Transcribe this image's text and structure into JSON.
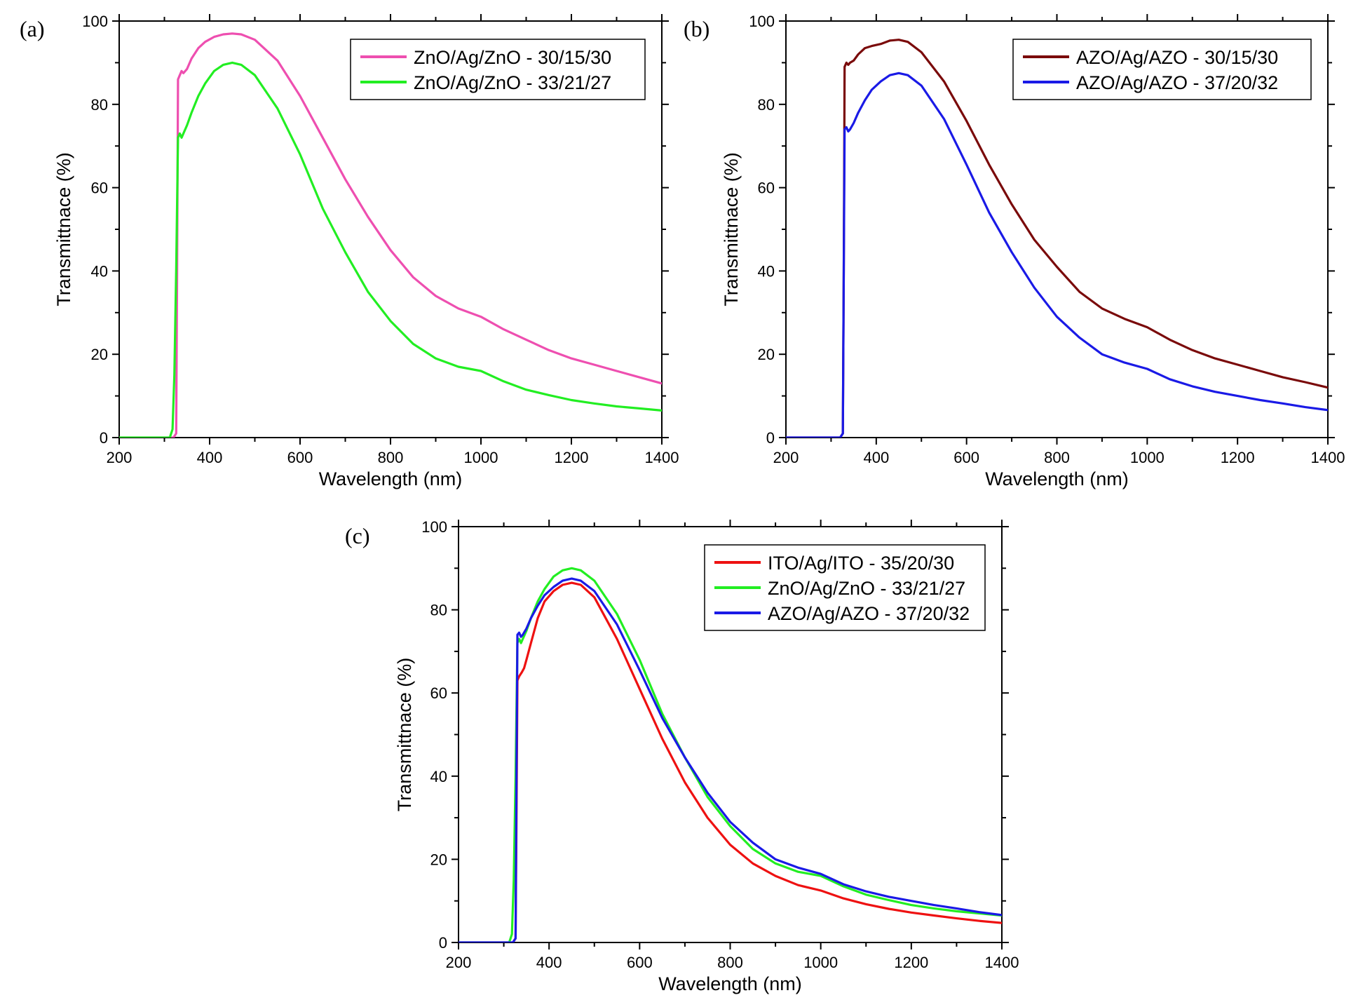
{
  "chart_data": [
    {
      "type": "line",
      "panel_label": "(a)",
      "xlabel": "Wavelength (nm)",
      "ylabel": "Transmittnace (%)",
      "xlim": [
        200,
        1400
      ],
      "ylim": [
        0,
        100
      ],
      "xticks": [
        200,
        400,
        600,
        800,
        1000,
        1200,
        1400
      ],
      "yticks": [
        0,
        20,
        40,
        60,
        80,
        100
      ],
      "legend_position": "top-right",
      "series": [
        {
          "name": "ZnO/Ag/ZnO - 30/15/30",
          "color": "#ee4fb0",
          "x": [
            200,
            320,
            326,
            328,
            330,
            334,
            338,
            342,
            350,
            360,
            375,
            390,
            410,
            430,
            450,
            470,
            500,
            550,
            600,
            650,
            700,
            750,
            800,
            850,
            900,
            950,
            1000,
            1050,
            1100,
            1150,
            1200,
            1250,
            1300,
            1350,
            1400
          ],
          "y": [
            0,
            0,
            1,
            40,
            86,
            87,
            88,
            87.5,
            88.5,
            91,
            93.5,
            95,
            96.2,
            96.8,
            97,
            96.8,
            95.5,
            90.5,
            82,
            72,
            62,
            53,
            45,
            38.5,
            34,
            31,
            29,
            26,
            23.5,
            21,
            19,
            17.5,
            16,
            14.5,
            13
          ]
        },
        {
          "name": "ZnO/Ag/ZnO - 33/21/27",
          "color": "#22ee22",
          "x": [
            200,
            312,
            318,
            322,
            326,
            330,
            334,
            338,
            342,
            350,
            360,
            375,
            390,
            410,
            430,
            450,
            470,
            500,
            550,
            600,
            650,
            700,
            750,
            800,
            850,
            900,
            950,
            1000,
            1050,
            1100,
            1150,
            1200,
            1250,
            1300,
            1350,
            1400
          ],
          "y": [
            0,
            0,
            2,
            15,
            40,
            72,
            73,
            72,
            73,
            75,
            78,
            82,
            85,
            88,
            89.5,
            90,
            89.5,
            87,
            79,
            68,
            55,
            44.5,
            35,
            28,
            22.5,
            19,
            17,
            16,
            13.5,
            11.5,
            10.2,
            9,
            8.2,
            7.5,
            7,
            6.5
          ]
        }
      ]
    },
    {
      "type": "line",
      "panel_label": "(b)",
      "xlabel": "Wavelength (nm)",
      "ylabel": "Transmittnace (%)",
      "xlim": [
        200,
        1400
      ],
      "ylim": [
        0,
        100
      ],
      "xticks": [
        200,
        400,
        600,
        800,
        1000,
        1200,
        1400
      ],
      "yticks": [
        0,
        20,
        40,
        60,
        80,
        100
      ],
      "legend_position": "top-right",
      "series": [
        {
          "name": "AZO/Ag/AZO - 30/15/30",
          "color": "#7a0a0a",
          "x": [
            200,
            320,
            326,
            328,
            330,
            334,
            338,
            342,
            350,
            360,
            375,
            390,
            410,
            430,
            450,
            470,
            500,
            550,
            600,
            650,
            700,
            750,
            800,
            850,
            900,
            950,
            1000,
            1050,
            1100,
            1150,
            1200,
            1250,
            1300,
            1350,
            1400
          ],
          "y": [
            0,
            0,
            1,
            40,
            89,
            90,
            89.5,
            90,
            90.5,
            92,
            93.5,
            94,
            94.5,
            95.3,
            95.5,
            95,
            92.5,
            85.5,
            76,
            65.5,
            56,
            47.5,
            41,
            35,
            31,
            28.5,
            26.5,
            23.5,
            21,
            19,
            17.5,
            16,
            14.5,
            13.3,
            12
          ]
        },
        {
          "name": "AZO/Ag/AZO - 37/20/32",
          "color": "#1a1ae6",
          "x": [
            200,
            320,
            326,
            328,
            330,
            334,
            338,
            342,
            350,
            360,
            375,
            390,
            410,
            430,
            450,
            470,
            500,
            550,
            600,
            650,
            700,
            750,
            800,
            850,
            900,
            950,
            1000,
            1050,
            1100,
            1150,
            1200,
            1250,
            1300,
            1350,
            1400
          ],
          "y": [
            0,
            0,
            1,
            40,
            74,
            74.5,
            73.5,
            74,
            75.5,
            78,
            81,
            83.5,
            85.5,
            87,
            87.5,
            87,
            84.5,
            76.5,
            65.5,
            54,
            44.5,
            36,
            29,
            24,
            20,
            18,
            16.5,
            14,
            12.3,
            11,
            10,
            9,
            8.2,
            7.3,
            6.6
          ]
        }
      ]
    },
    {
      "type": "line",
      "panel_label": "(c)",
      "xlabel": "Wavelength (nm)",
      "ylabel": "Transmittnace (%)",
      "xlim": [
        200,
        1400
      ],
      "ylim": [
        0,
        100
      ],
      "xticks": [
        200,
        400,
        600,
        800,
        1000,
        1200,
        1400
      ],
      "yticks": [
        0,
        20,
        40,
        60,
        80,
        100
      ],
      "legend_position": "top-right",
      "series": [
        {
          "name": "ITO/Ag/ITO - 35/20/30",
          "color": "#ee1111",
          "x": [
            200,
            320,
            326,
            328,
            330,
            334,
            340,
            345,
            350,
            360,
            375,
            390,
            410,
            430,
            450,
            470,
            500,
            550,
            600,
            650,
            700,
            750,
            800,
            850,
            900,
            950,
            1000,
            1050,
            1100,
            1150,
            1200,
            1250,
            1300,
            1350,
            1400
          ],
          "y": [
            0,
            0,
            1,
            30,
            63,
            64,
            65,
            66,
            68,
            72,
            78,
            82,
            84.5,
            86,
            86.5,
            86,
            83,
            73,
            61,
            49,
            38.5,
            30,
            23.5,
            19,
            16,
            13.8,
            12.5,
            10.6,
            9.2,
            8.1,
            7.2,
            6.5,
            5.8,
            5.2,
            4.7
          ]
        },
        {
          "name": "ZnO/Ag/ZnO - 33/21/27",
          "color": "#22ee22",
          "x": [
            200,
            312,
            318,
            322,
            326,
            330,
            334,
            338,
            342,
            350,
            360,
            375,
            390,
            410,
            430,
            450,
            470,
            500,
            550,
            600,
            650,
            700,
            750,
            800,
            850,
            900,
            950,
            1000,
            1050,
            1100,
            1150,
            1200,
            1250,
            1300,
            1350,
            1400
          ],
          "y": [
            0,
            0,
            2,
            15,
            40,
            72,
            73,
            72,
            73,
            75,
            78,
            82,
            85,
            88,
            89.5,
            90,
            89.5,
            87,
            79,
            68,
            55,
            44.5,
            35,
            28,
            22.5,
            19,
            17,
            16,
            13.5,
            11.5,
            10.2,
            9,
            8.2,
            7.5,
            7,
            6.5
          ]
        },
        {
          "name": "AZO/Ag/AZO - 37/20/32",
          "color": "#1a1ae6",
          "x": [
            200,
            320,
            326,
            328,
            330,
            334,
            338,
            342,
            350,
            360,
            375,
            390,
            410,
            430,
            450,
            470,
            500,
            550,
            600,
            650,
            700,
            750,
            800,
            850,
            900,
            950,
            1000,
            1050,
            1100,
            1150,
            1200,
            1250,
            1300,
            1350,
            1400
          ],
          "y": [
            0,
            0,
            1,
            40,
            74,
            74.5,
            73.5,
            74,
            75.5,
            78,
            81,
            83.5,
            85.5,
            87,
            87.5,
            87,
            84.5,
            76.5,
            65.5,
            54,
            44.5,
            36,
            29,
            24,
            20,
            18,
            16.5,
            14,
            12.3,
            11,
            10,
            9,
            8.2,
            7.3,
            6.6
          ]
        }
      ]
    }
  ]
}
